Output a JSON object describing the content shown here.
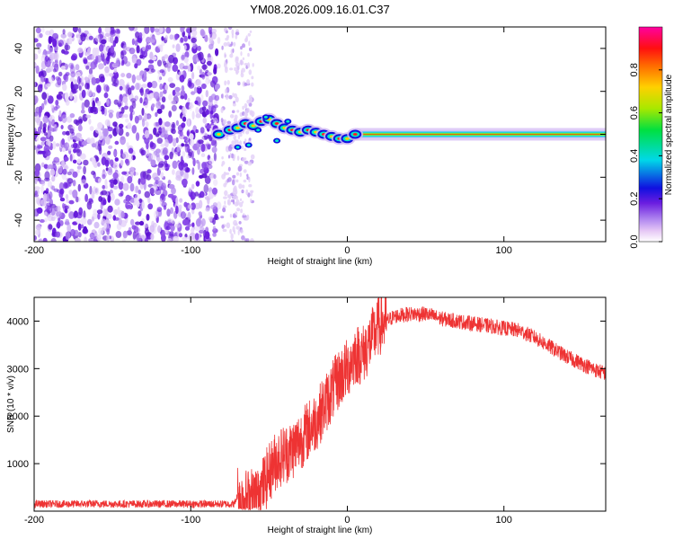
{
  "title": "YM08.2026.009.16.01.C37",
  "chart_data": [
    {
      "type": "heatmap",
      "title": "YM08.2026.009.16.01.C37",
      "xlabel": "Height of straight line (km)",
      "ylabel": "Frequency (Hz)",
      "xlim": [
        -200,
        165
      ],
      "ylim": [
        -50,
        50
      ],
      "xticks": [
        -200,
        -100,
        0,
        100
      ],
      "xtick_labels": [
        "-200",
        "-100",
        "0",
        "100"
      ],
      "yticks": [
        -40,
        -20,
        0,
        20,
        40
      ],
      "ytick_labels": [
        "-40",
        "-20",
        "0",
        "20",
        "40"
      ],
      "colorbar": {
        "label": "Normalized spectral amplitude",
        "range": [
          0,
          1
        ],
        "ticks": [
          0,
          0.2,
          0.4,
          0.6,
          0.8
        ],
        "tick_labels": [
          "0.0",
          "0.2",
          "0.4",
          "0.6",
          "0.8"
        ]
      },
      "features": [
        {
          "name": "broadband noise",
          "x_range": [
            -200,
            -82
          ],
          "amplitude": 0.1
        },
        {
          "name": "sparse noise",
          "x_range": [
            -80,
            -60
          ],
          "amplitude": 0.05
        },
        {
          "name": "signal onset",
          "x_range": [
            -82,
            5
          ],
          "amplitude": 0.8
        },
        {
          "name": "carrier line",
          "x_range": [
            5,
            165
          ],
          "frequency": 0,
          "amplitude": 0.95
        }
      ],
      "signal_track": {
        "x": [
          -82,
          -75,
          -70,
          -65,
          -60,
          -55,
          -50,
          -45,
          -40,
          -35,
          -30,
          -25,
          -20,
          -15,
          -10,
          -5,
          0,
          5
        ],
        "frequency": [
          0,
          2,
          3,
          5,
          4,
          6,
          7,
          5,
          3,
          2,
          1,
          2,
          1,
          0,
          -1,
          -2,
          -2,
          0
        ]
      }
    },
    {
      "type": "line",
      "xlabel": "Height of straight line (km)",
      "ylabel": "SNR (10 * v/v)",
      "xlim": [
        -200,
        165
      ],
      "ylim": [
        0,
        4500
      ],
      "xticks": [
        -200,
        -100,
        0,
        100
      ],
      "xtick_labels": [
        "-200",
        "-100",
        "0",
        "100"
      ],
      "yticks": [
        1000,
        2000,
        3000,
        4000
      ],
      "ytick_labels": [
        "1000",
        "2000",
        "3000",
        "4000"
      ],
      "color": "#ee3333",
      "series": [
        {
          "name": "SNR",
          "x": [
            -200,
            -180,
            -160,
            -140,
            -120,
            -100,
            -80,
            -72,
            -70,
            -65,
            -60,
            -55,
            -50,
            -45,
            -40,
            -35,
            -30,
            -25,
            -20,
            -15,
            -10,
            -5,
            0,
            5,
            10,
            15,
            20,
            25,
            30,
            40,
            50,
            60,
            70,
            80,
            90,
            100,
            110,
            120,
            130,
            140,
            150,
            160,
            165
          ],
          "y": [
            150,
            150,
            155,
            150,
            150,
            150,
            150,
            150,
            350,
            250,
            300,
            450,
            800,
            1100,
            1200,
            1300,
            1500,
            1700,
            1900,
            2200,
            2500,
            2800,
            3000,
            3300,
            3300,
            3600,
            3900,
            4000,
            4100,
            4150,
            4150,
            4050,
            4000,
            3950,
            3900,
            3850,
            3800,
            3650,
            3450,
            3250,
            3100,
            2950,
            2900
          ]
        }
      ]
    }
  ]
}
